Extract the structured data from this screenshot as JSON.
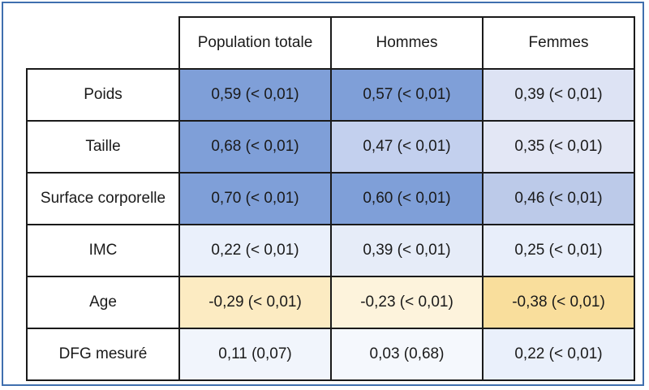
{
  "table": {
    "headers": [
      "Population totale",
      "Hommes",
      "Femmes"
    ],
    "rows": [
      {
        "label": "Poids",
        "cells": [
          "0,59 (< 0,01)",
          "0,57 (< 0,01)",
          "0,39 (< 0,01)"
        ],
        "colors": [
          "#7f9fd8",
          "#7f9fd8",
          "#dde3f4"
        ]
      },
      {
        "label": "Taille",
        "cells": [
          "0,68 (< 0,01)",
          "0,47 (< 0,01)",
          "0,35 (< 0,01)"
        ],
        "colors": [
          "#7f9fd8",
          "#c3d0ee",
          "#e3e7f5"
        ]
      },
      {
        "label": "Surface corporelle",
        "cells": [
          "0,70  (< 0,01)",
          "0,60 (< 0,01)",
          "0,46 (< 0,01)"
        ],
        "colors": [
          "#7f9fd8",
          "#7f9fd8",
          "#bccae9"
        ]
      },
      {
        "label": "IMC",
        "cells": [
          "0,22 (< 0,01)",
          "0,39 (< 0,01)",
          "0,25 (< 0,01)"
        ],
        "colors": [
          "#eaf0fb",
          "#e6ecf8",
          "#e8eefa"
        ]
      },
      {
        "label": "Age",
        "cells": [
          "-0,29 (< 0,01)",
          "-0,23 (< 0,01)",
          "-0,38 (< 0,01)"
        ],
        "colors": [
          "#fcebc2",
          "#fdf3dc",
          "#f9de9c"
        ]
      },
      {
        "label": "DFG mesuré",
        "cells": [
          "0,11 (0,07)",
          "0,03 (0,68)",
          "0,22 (< 0,01)"
        ],
        "colors": [
          "#f1f5fc",
          "#f5f8fd",
          "#eaf0fb"
        ]
      }
    ]
  }
}
